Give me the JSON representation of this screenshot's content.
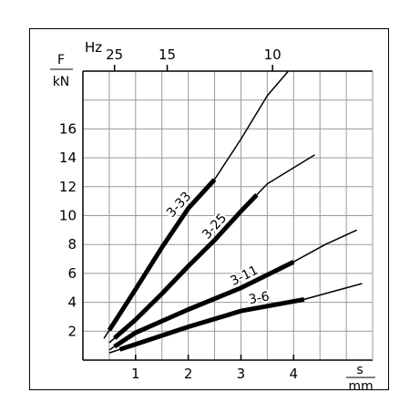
{
  "chart_data": {
    "type": "line",
    "x_axis": {
      "unit_top": "s",
      "unit_bottom": "mm",
      "ticks": [
        1,
        2,
        3,
        4
      ],
      "range": [
        0,
        5.5
      ],
      "minor_grid_step": 0.5
    },
    "y_axis": {
      "unit_top": "F",
      "unit_bottom": "kN",
      "ticks": [
        2,
        4,
        6,
        8,
        10,
        12,
        14,
        16
      ],
      "range": [
        0,
        20
      ],
      "grid_step": 2
    },
    "top_axis": {
      "unit": "Hz",
      "ticks": [
        {
          "label": "25",
          "s": 0.6
        },
        {
          "label": "15",
          "s": 1.6
        },
        {
          "label": "10",
          "s": 3.6
        }
      ]
    },
    "grid": true,
    "series": [
      {
        "name": "3-33",
        "points": [
          [
            0.4,
            1.5
          ],
          [
            0.7,
            3.2
          ],
          [
            1.0,
            4.9
          ],
          [
            1.5,
            7.8
          ],
          [
            2.0,
            10.5
          ],
          [
            2.5,
            12.5
          ],
          [
            3.0,
            15.3
          ],
          [
            3.5,
            18.3
          ],
          [
            3.9,
            20.0
          ]
        ],
        "thick_range": [
          0.5,
          2.5
        ]
      },
      {
        "name": "3-25",
        "points": [
          [
            0.5,
            1.2
          ],
          [
            1.0,
            2.8
          ],
          [
            1.5,
            4.6
          ],
          [
            2.0,
            6.5
          ],
          [
            2.5,
            8.3
          ],
          [
            3.0,
            10.3
          ],
          [
            3.5,
            12.2
          ],
          [
            4.4,
            14.2
          ]
        ],
        "thick_range": [
          0.6,
          3.3
        ]
      },
      {
        "name": "3-11",
        "points": [
          [
            0.5,
            0.7
          ],
          [
            1.0,
            1.9
          ],
          [
            2.0,
            3.5
          ],
          [
            3.0,
            5.0
          ],
          [
            4.0,
            6.8
          ],
          [
            4.6,
            8.0
          ],
          [
            5.2,
            9.0
          ]
        ],
        "thick_range": [
          0.6,
          4.0
        ]
      },
      {
        "name": "3-6",
        "points": [
          [
            0.5,
            0.5
          ],
          [
            1.0,
            1.1
          ],
          [
            2.0,
            2.3
          ],
          [
            3.0,
            3.4
          ],
          [
            4.2,
            4.2
          ],
          [
            4.8,
            4.8
          ],
          [
            5.3,
            5.3
          ]
        ],
        "thick_range": [
          0.7,
          4.2
        ]
      }
    ]
  }
}
